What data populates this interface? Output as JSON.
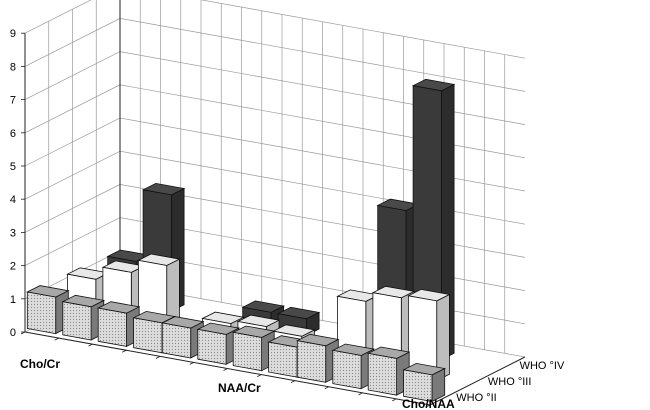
{
  "chart_data": {
    "type": "bar",
    "subtype": "3d-bar",
    "categories": [
      "Cho/Cr",
      "NAA/Cr",
      "Cho/NAA"
    ],
    "series": [
      {
        "name": "WHO °II",
        "color": "#d9d9d9",
        "pattern": "dots",
        "values": [
          [
            1.1,
            1.0,
            1.0,
            0.9
          ],
          [
            0.9,
            0.9,
            1.0,
            0.9
          ],
          [
            1.1,
            1.0,
            1.1,
            0.8
          ]
        ]
      },
      {
        "name": "WHO °III",
        "color": "#ffffff",
        "pattern": "none",
        "values": [
          [
            1.2,
            1.6,
            2.0
          ],
          [
            0.6,
            0.7,
            0.6
          ],
          [
            2.0,
            2.3,
            2.4
          ]
        ]
      },
      {
        "name": "WHO °IV",
        "color": "#3a3a3a",
        "pattern": "none",
        "values": [
          [
            1.3,
            3.5
          ],
          [
            0.5,
            0.5
          ],
          [
            4.3,
            8.1
          ]
        ]
      }
    ],
    "y_ticks": [
      "0",
      "1",
      "2",
      "3",
      "4",
      "5",
      "6",
      "7",
      "8",
      "9"
    ],
    "ylim": [
      0,
      9
    ],
    "grid": true,
    "xlabel": "",
    "ylabel": ""
  }
}
